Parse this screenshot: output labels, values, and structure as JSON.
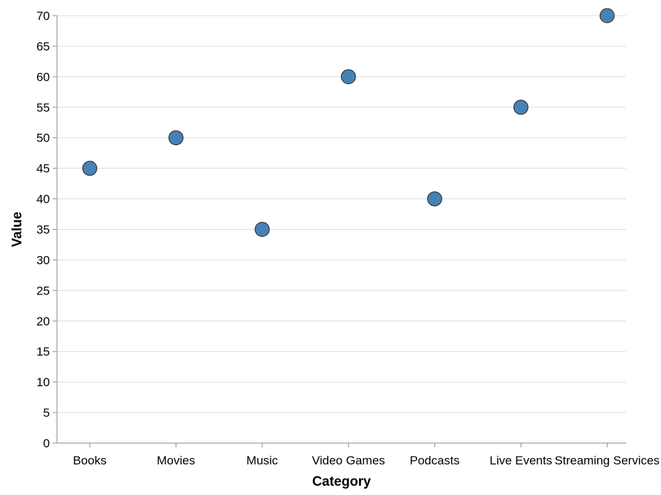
{
  "chart_data": {
    "type": "scatter",
    "categories": [
      "Books",
      "Movies",
      "Music",
      "Video Games",
      "Podcasts",
      "Live Events",
      "Streaming Services"
    ],
    "values": [
      45,
      50,
      35,
      60,
      40,
      55,
      70
    ],
    "xlabel": "Category",
    "ylabel": "Value",
    "ylim": [
      0,
      70
    ],
    "yticks": [
      0,
      5,
      10,
      15,
      20,
      25,
      30,
      35,
      40,
      45,
      50,
      55,
      60,
      65,
      70
    ],
    "grid": "horizontal",
    "point_color": "#4682b4",
    "point_stroke_color": "#222222"
  }
}
